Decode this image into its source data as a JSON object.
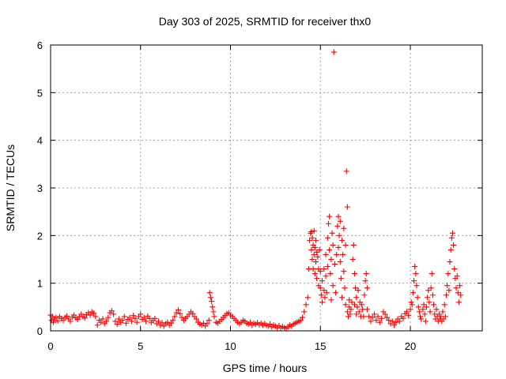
{
  "chart_data": {
    "type": "scatter",
    "title": "Day 303 of 2025, SRMTID for receiver thx0",
    "xlabel": "GPS time / hours",
    "ylabel": "SRMTID / TECUs",
    "xlim": [
      0,
      24
    ],
    "ylim": [
      0,
      6
    ],
    "xticks": [
      0,
      5,
      10,
      15,
      20
    ],
    "yticks": [
      0,
      1,
      2,
      3,
      4,
      5,
      6
    ],
    "grid": true,
    "marker": "plus",
    "series": [
      {
        "name": "SRMTID",
        "color": "#ff0000",
        "points": [
          [
            0.0,
            0.33
          ],
          [
            0.05,
            0.22
          ],
          [
            0.1,
            0.3
          ],
          [
            0.15,
            0.18
          ],
          [
            0.2,
            0.25
          ],
          [
            0.3,
            0.28
          ],
          [
            0.4,
            0.21
          ],
          [
            0.5,
            0.3
          ],
          [
            0.6,
            0.26
          ],
          [
            0.7,
            0.22
          ],
          [
            0.8,
            0.28
          ],
          [
            0.9,
            0.31
          ],
          [
            1.0,
            0.25
          ],
          [
            1.1,
            0.2
          ],
          [
            1.2,
            0.29
          ],
          [
            1.3,
            0.33
          ],
          [
            1.4,
            0.27
          ],
          [
            1.5,
            0.24
          ],
          [
            1.6,
            0.3
          ],
          [
            1.7,
            0.35
          ],
          [
            1.8,
            0.3
          ],
          [
            1.9,
            0.27
          ],
          [
            2.0,
            0.34
          ],
          [
            2.1,
            0.38
          ],
          [
            2.2,
            0.33
          ],
          [
            2.3,
            0.4
          ],
          [
            2.4,
            0.37
          ],
          [
            2.5,
            0.3
          ],
          [
            2.6,
            0.12
          ],
          [
            2.7,
            0.22
          ],
          [
            2.8,
            0.18
          ],
          [
            2.9,
            0.25
          ],
          [
            3.0,
            0.15
          ],
          [
            3.1,
            0.2
          ],
          [
            3.2,
            0.28
          ],
          [
            3.3,
            0.38
          ],
          [
            3.4,
            0.42
          ],
          [
            3.5,
            0.35
          ],
          [
            3.6,
            0.2
          ],
          [
            3.7,
            0.14
          ],
          [
            3.8,
            0.25
          ],
          [
            3.9,
            0.18
          ],
          [
            4.0,
            0.22
          ],
          [
            4.1,
            0.3
          ],
          [
            4.2,
            0.16
          ],
          [
            4.3,
            0.24
          ],
          [
            4.4,
            0.28
          ],
          [
            4.5,
            0.2
          ],
          [
            4.6,
            0.32
          ],
          [
            4.7,
            0.26
          ],
          [
            4.8,
            0.18
          ],
          [
            4.9,
            0.3
          ],
          [
            5.0,
            0.35
          ],
          [
            5.1,
            0.24
          ],
          [
            5.2,
            0.28
          ],
          [
            5.3,
            0.2
          ],
          [
            5.4,
            0.31
          ],
          [
            5.5,
            0.26
          ],
          [
            5.6,
            0.18
          ],
          [
            5.7,
            0.22
          ],
          [
            5.8,
            0.26
          ],
          [
            5.9,
            0.15
          ],
          [
            6.0,
            0.2
          ],
          [
            6.1,
            0.12
          ],
          [
            6.2,
            0.17
          ],
          [
            6.3,
            0.1
          ],
          [
            6.4,
            0.15
          ],
          [
            6.5,
            0.18
          ],
          [
            6.6,
            0.12
          ],
          [
            6.7,
            0.16
          ],
          [
            6.8,
            0.22
          ],
          [
            6.9,
            0.3
          ],
          [
            7.0,
            0.38
          ],
          [
            7.1,
            0.44
          ],
          [
            7.2,
            0.36
          ],
          [
            7.3,
            0.28
          ],
          [
            7.4,
            0.22
          ],
          [
            7.5,
            0.26
          ],
          [
            7.6,
            0.3
          ],
          [
            7.7,
            0.35
          ],
          [
            7.8,
            0.4
          ],
          [
            7.9,
            0.36
          ],
          [
            8.0,
            0.3
          ],
          [
            8.1,
            0.25
          ],
          [
            8.2,
            0.18
          ],
          [
            8.3,
            0.14
          ],
          [
            8.4,
            0.12
          ],
          [
            8.5,
            0.16
          ],
          [
            8.6,
            0.1
          ],
          [
            8.7,
            0.15
          ],
          [
            8.8,
            0.22
          ],
          [
            8.85,
            0.8
          ],
          [
            8.9,
            0.7
          ],
          [
            8.95,
            0.62
          ],
          [
            9.0,
            0.5
          ],
          [
            9.05,
            0.4
          ],
          [
            9.1,
            0.3
          ],
          [
            9.2,
            0.18
          ],
          [
            9.3,
            0.16
          ],
          [
            9.4,
            0.2
          ],
          [
            9.5,
            0.24
          ],
          [
            9.6,
            0.28
          ],
          [
            9.7,
            0.32
          ],
          [
            9.8,
            0.36
          ],
          [
            9.9,
            0.38
          ],
          [
            10.0,
            0.33
          ],
          [
            10.1,
            0.3
          ],
          [
            10.2,
            0.26
          ],
          [
            10.3,
            0.22
          ],
          [
            10.4,
            0.18
          ],
          [
            10.5,
            0.15
          ],
          [
            10.6,
            0.18
          ],
          [
            10.7,
            0.22
          ],
          [
            10.8,
            0.2
          ],
          [
            10.9,
            0.16
          ],
          [
            11.0,
            0.14
          ],
          [
            11.1,
            0.18
          ],
          [
            11.2,
            0.12
          ],
          [
            11.3,
            0.16
          ],
          [
            11.4,
            0.14
          ],
          [
            11.5,
            0.17
          ],
          [
            11.6,
            0.13
          ],
          [
            11.7,
            0.16
          ],
          [
            11.8,
            0.12
          ],
          [
            11.9,
            0.15
          ],
          [
            12.0,
            0.12
          ],
          [
            12.1,
            0.1
          ],
          [
            12.2,
            0.14
          ],
          [
            12.3,
            0.08
          ],
          [
            12.4,
            0.12
          ],
          [
            12.5,
            0.1
          ],
          [
            12.6,
            0.07
          ],
          [
            12.7,
            0.11
          ],
          [
            12.8,
            0.06
          ],
          [
            12.9,
            0.09
          ],
          [
            13.0,
            0.07
          ],
          [
            13.1,
            0.05
          ],
          [
            13.2,
            0.09
          ],
          [
            13.3,
            0.12
          ],
          [
            13.4,
            0.1
          ],
          [
            13.5,
            0.14
          ],
          [
            13.6,
            0.16
          ],
          [
            13.7,
            0.18
          ],
          [
            13.8,
            0.2
          ],
          [
            13.9,
            0.22
          ],
          [
            14.0,
            0.28
          ],
          [
            14.1,
            0.4
          ],
          [
            14.2,
            0.55
          ],
          [
            14.3,
            0.7
          ],
          [
            14.35,
            1.3
          ],
          [
            14.4,
            1.9
          ],
          [
            14.45,
            2.05
          ],
          [
            14.5,
            1.7
          ],
          [
            14.5,
            2.08
          ],
          [
            14.55,
            1.5
          ],
          [
            14.55,
            1.95
          ],
          [
            14.6,
            1.8
          ],
          [
            14.6,
            1.3
          ],
          [
            14.65,
            2.1
          ],
          [
            14.65,
            1.6
          ],
          [
            14.7,
            1.75
          ],
          [
            14.7,
            1.2
          ],
          [
            14.75,
            1.45
          ],
          [
            14.75,
            1.9
          ],
          [
            14.8,
            1.65
          ],
          [
            14.8,
            1.1
          ],
          [
            14.85,
            1.55
          ],
          [
            14.9,
            1.3
          ],
          [
            14.9,
            0.95
          ],
          [
            14.95,
            1.7
          ],
          [
            15.0,
            0.9
          ],
          [
            15.0,
            1.25
          ],
          [
            15.05,
            0.75
          ],
          [
            15.1,
            1.05
          ],
          [
            15.1,
            0.6
          ],
          [
            15.2,
            0.85
          ],
          [
            15.2,
            1.3
          ],
          [
            15.25,
            0.7
          ],
          [
            15.3,
            1.15
          ],
          [
            15.3,
            1.6
          ],
          [
            15.35,
            0.8
          ],
          [
            15.4,
            1.35
          ],
          [
            15.4,
            1.95
          ],
          [
            15.45,
            2.25
          ],
          [
            15.5,
            1.7
          ],
          [
            15.5,
            2.4
          ],
          [
            15.55,
            1.2
          ],
          [
            15.6,
            0.65
          ],
          [
            15.6,
            1.5
          ],
          [
            15.65,
            2.05
          ],
          [
            15.7,
            0.95
          ],
          [
            15.7,
            1.8
          ],
          [
            15.75,
            5.85
          ],
          [
            15.8,
            1.4
          ],
          [
            15.85,
            0.8
          ],
          [
            15.9,
            1.6
          ],
          [
            15.95,
            2.2
          ],
          [
            16.0,
            2.4
          ],
          [
            16.0,
            1.75
          ],
          [
            16.05,
            2.0
          ],
          [
            16.1,
            1.45
          ],
          [
            16.1,
            2.3
          ],
          [
            16.15,
            1.1
          ],
          [
            16.2,
            1.9
          ],
          [
            16.2,
            0.7
          ],
          [
            16.25,
            1.6
          ],
          [
            16.3,
            1.25
          ],
          [
            16.3,
            2.15
          ],
          [
            16.35,
            0.9
          ],
          [
            16.4,
            1.8
          ],
          [
            16.4,
            0.55
          ],
          [
            16.45,
            3.35
          ],
          [
            16.5,
            2.6
          ],
          [
            16.5,
            0.4
          ],
          [
            16.55,
            0.3
          ],
          [
            16.6,
            0.5
          ],
          [
            16.6,
            0.65
          ],
          [
            16.65,
            0.35
          ],
          [
            16.7,
            0.45
          ],
          [
            16.75,
            0.6
          ],
          [
            16.8,
            1.5
          ],
          [
            16.85,
            1.8
          ],
          [
            16.9,
            1.2
          ],
          [
            16.9,
            0.55
          ],
          [
            16.95,
            0.9
          ],
          [
            17.0,
            0.7
          ],
          [
            17.0,
            0.35
          ],
          [
            17.05,
            0.5
          ],
          [
            17.1,
            0.85
          ],
          [
            17.15,
            0.4
          ],
          [
            17.2,
            0.6
          ],
          [
            17.25,
            0.3
          ],
          [
            17.3,
            0.55
          ],
          [
            17.35,
            0.45
          ],
          [
            17.4,
            0.3
          ],
          [
            17.45,
            0.75
          ],
          [
            17.5,
            1.05
          ],
          [
            17.55,
            1.2
          ],
          [
            17.6,
            0.9
          ],
          [
            17.6,
            0.45
          ],
          [
            17.7,
            0.3
          ],
          [
            17.8,
            0.2
          ],
          [
            17.9,
            0.28
          ],
          [
            18.0,
            0.35
          ],
          [
            18.1,
            0.22
          ],
          [
            18.2,
            0.3
          ],
          [
            18.3,
            0.18
          ],
          [
            18.4,
            0.26
          ],
          [
            18.5,
            0.4
          ],
          [
            18.6,
            0.35
          ],
          [
            18.7,
            0.28
          ],
          [
            18.8,
            0.22
          ],
          [
            18.9,
            0.15
          ],
          [
            19.0,
            0.2
          ],
          [
            19.1,
            0.12
          ],
          [
            19.2,
            0.18
          ],
          [
            19.3,
            0.25
          ],
          [
            19.4,
            0.2
          ],
          [
            19.5,
            0.3
          ],
          [
            19.6,
            0.26
          ],
          [
            19.7,
            0.36
          ],
          [
            19.8,
            0.4
          ],
          [
            19.9,
            0.32
          ],
          [
            20.0,
            0.45
          ],
          [
            20.05,
            0.6
          ],
          [
            20.1,
            0.55
          ],
          [
            20.15,
            0.8
          ],
          [
            20.2,
            1.05
          ],
          [
            20.25,
            1.35
          ],
          [
            20.3,
            1.2
          ],
          [
            20.35,
            0.95
          ],
          [
            20.4,
            0.7
          ],
          [
            20.45,
            0.5
          ],
          [
            20.5,
            0.4
          ],
          [
            20.55,
            0.3
          ],
          [
            20.6,
            0.25
          ],
          [
            20.7,
            0.45
          ],
          [
            20.75,
            0.55
          ],
          [
            20.8,
            0.35
          ],
          [
            20.85,
            0.2
          ],
          [
            20.9,
            0.5
          ],
          [
            20.95,
            0.7
          ],
          [
            21.0,
            0.85
          ],
          [
            21.05,
            0.6
          ],
          [
            21.1,
            0.4
          ],
          [
            21.15,
            0.9
          ],
          [
            21.2,
            1.2
          ],
          [
            21.25,
            0.75
          ],
          [
            21.3,
            0.55
          ],
          [
            21.35,
            0.35
          ],
          [
            21.4,
            0.25
          ],
          [
            21.45,
            0.45
          ],
          [
            21.5,
            0.3
          ],
          [
            21.55,
            0.2
          ],
          [
            21.6,
            0.35
          ],
          [
            21.65,
            0.25
          ],
          [
            21.7,
            0.3
          ],
          [
            21.75,
            0.2
          ],
          [
            21.8,
            0.4
          ],
          [
            21.85,
            0.25
          ],
          [
            21.9,
            0.55
          ],
          [
            21.95,
            0.3
          ],
          [
            22.0,
            0.75
          ],
          [
            22.05,
            0.95
          ],
          [
            22.1,
            1.2
          ],
          [
            22.15,
            0.85
          ],
          [
            22.2,
            1.45
          ],
          [
            22.25,
            1.7
          ],
          [
            22.3,
            1.95
          ],
          [
            22.35,
            2.05
          ],
          [
            22.4,
            1.8
          ],
          [
            22.45,
            1.3
          ],
          [
            22.5,
            1.1
          ],
          [
            22.55,
            0.9
          ],
          [
            22.6,
            1.15
          ],
          [
            22.65,
            0.8
          ],
          [
            22.7,
            0.6
          ],
          [
            22.75,
            0.95
          ],
          [
            22.8,
            0.75
          ]
        ]
      }
    ]
  }
}
